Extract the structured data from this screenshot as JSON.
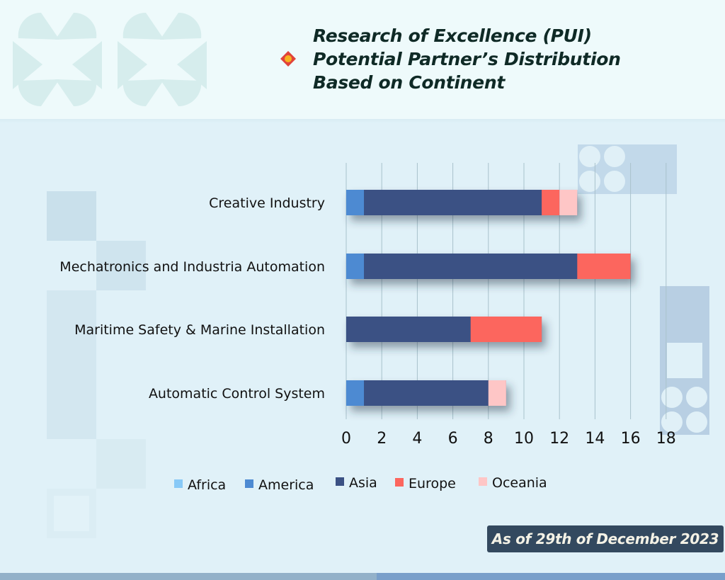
{
  "header": {
    "title_lines": [
      "Research of Excellence (PUI)",
      "Potential Partner’s Distribution",
      "Based on Continent"
    ],
    "bullet_icon": "diamond-bullet-icon"
  },
  "footer": {
    "date_label": "As of 29th of December 2023"
  },
  "colors": {
    "Africa": "#87c9f7",
    "America": "#4d8ad2",
    "Asia": "#3b5184",
    "Europe": "#fc665e",
    "Oceania": "#fec6c6",
    "grid": "#a9c2cc",
    "badge": "#33495f"
  },
  "chart_data": {
    "type": "bar",
    "orientation": "horizontal",
    "stacked": true,
    "title": "Research of Excellence (PUI) Potential Partner’s Distribution Based on Continent",
    "categories": [
      "Creative Industry",
      "Mechatronics and Industria Automation",
      "Maritime Safety & Marine Installation",
      "Automatic Control System"
    ],
    "series": [
      {
        "name": "Africa",
        "values": [
          0,
          0,
          0,
          0
        ]
      },
      {
        "name": "America",
        "values": [
          1,
          1,
          0,
          1
        ]
      },
      {
        "name": "Asia",
        "values": [
          10,
          12,
          7,
          7
        ]
      },
      {
        "name": "Europe",
        "values": [
          1,
          3,
          4,
          0
        ]
      },
      {
        "name": "Oceania",
        "values": [
          1,
          0,
          0,
          1
        ]
      }
    ],
    "xlim": [
      0,
      18
    ],
    "xticks": [
      "0",
      "2",
      "4",
      "6",
      "8",
      "10",
      "12",
      "14",
      "16",
      "18"
    ],
    "xlabel": "",
    "ylabel": "",
    "grid": "vertical",
    "legend": "bottom"
  }
}
